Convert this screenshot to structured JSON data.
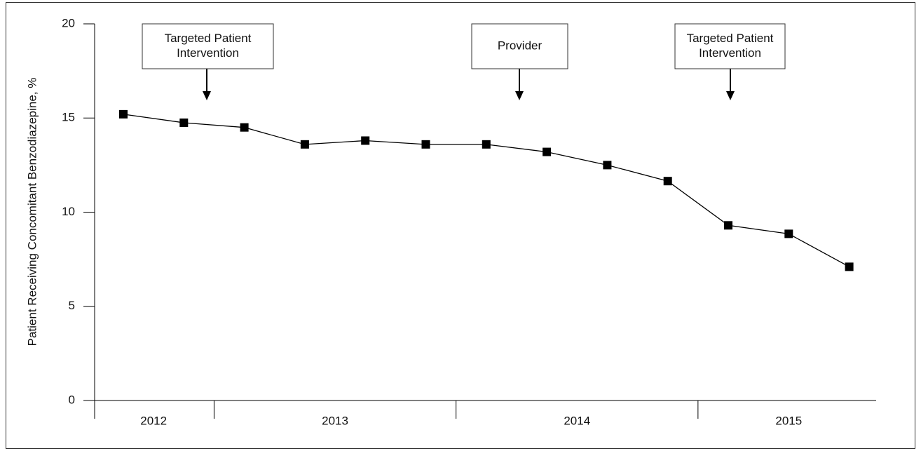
{
  "chart_data": {
    "type": "line",
    "y_label": "Patient Receiving Concomitant Benzodiazepine, %",
    "categories": [
      null,
      null,
      null,
      null,
      null,
      null,
      null,
      null,
      null,
      null,
      null,
      null,
      null
    ],
    "series": [
      {
        "color": "#000000",
        "values": [
          15.2,
          14.75,
          14.5,
          13.6,
          13.8,
          13.6,
          13.6,
          13.2,
          12.5,
          11.65,
          9.3,
          8.85,
          7.1
        ]
      }
    ],
    "x_groups": [
      {
        "label": "2012",
        "n": 2
      },
      {
        "label": "2013",
        "n": 4
      },
      {
        "label": "2014",
        "n": 4
      },
      {
        "label": "2015",
        "n": 3
      }
    ],
    "ylim": [
      0,
      20
    ],
    "yticks": [
      0,
      5,
      10,
      15,
      20
    ],
    "annotations": [
      [
        "Targeted Patient",
        "Intervention"
      ],
      [
        "Provider"
      ],
      [
        "Targeted Patient",
        "Intervention"
      ]
    ]
  }
}
